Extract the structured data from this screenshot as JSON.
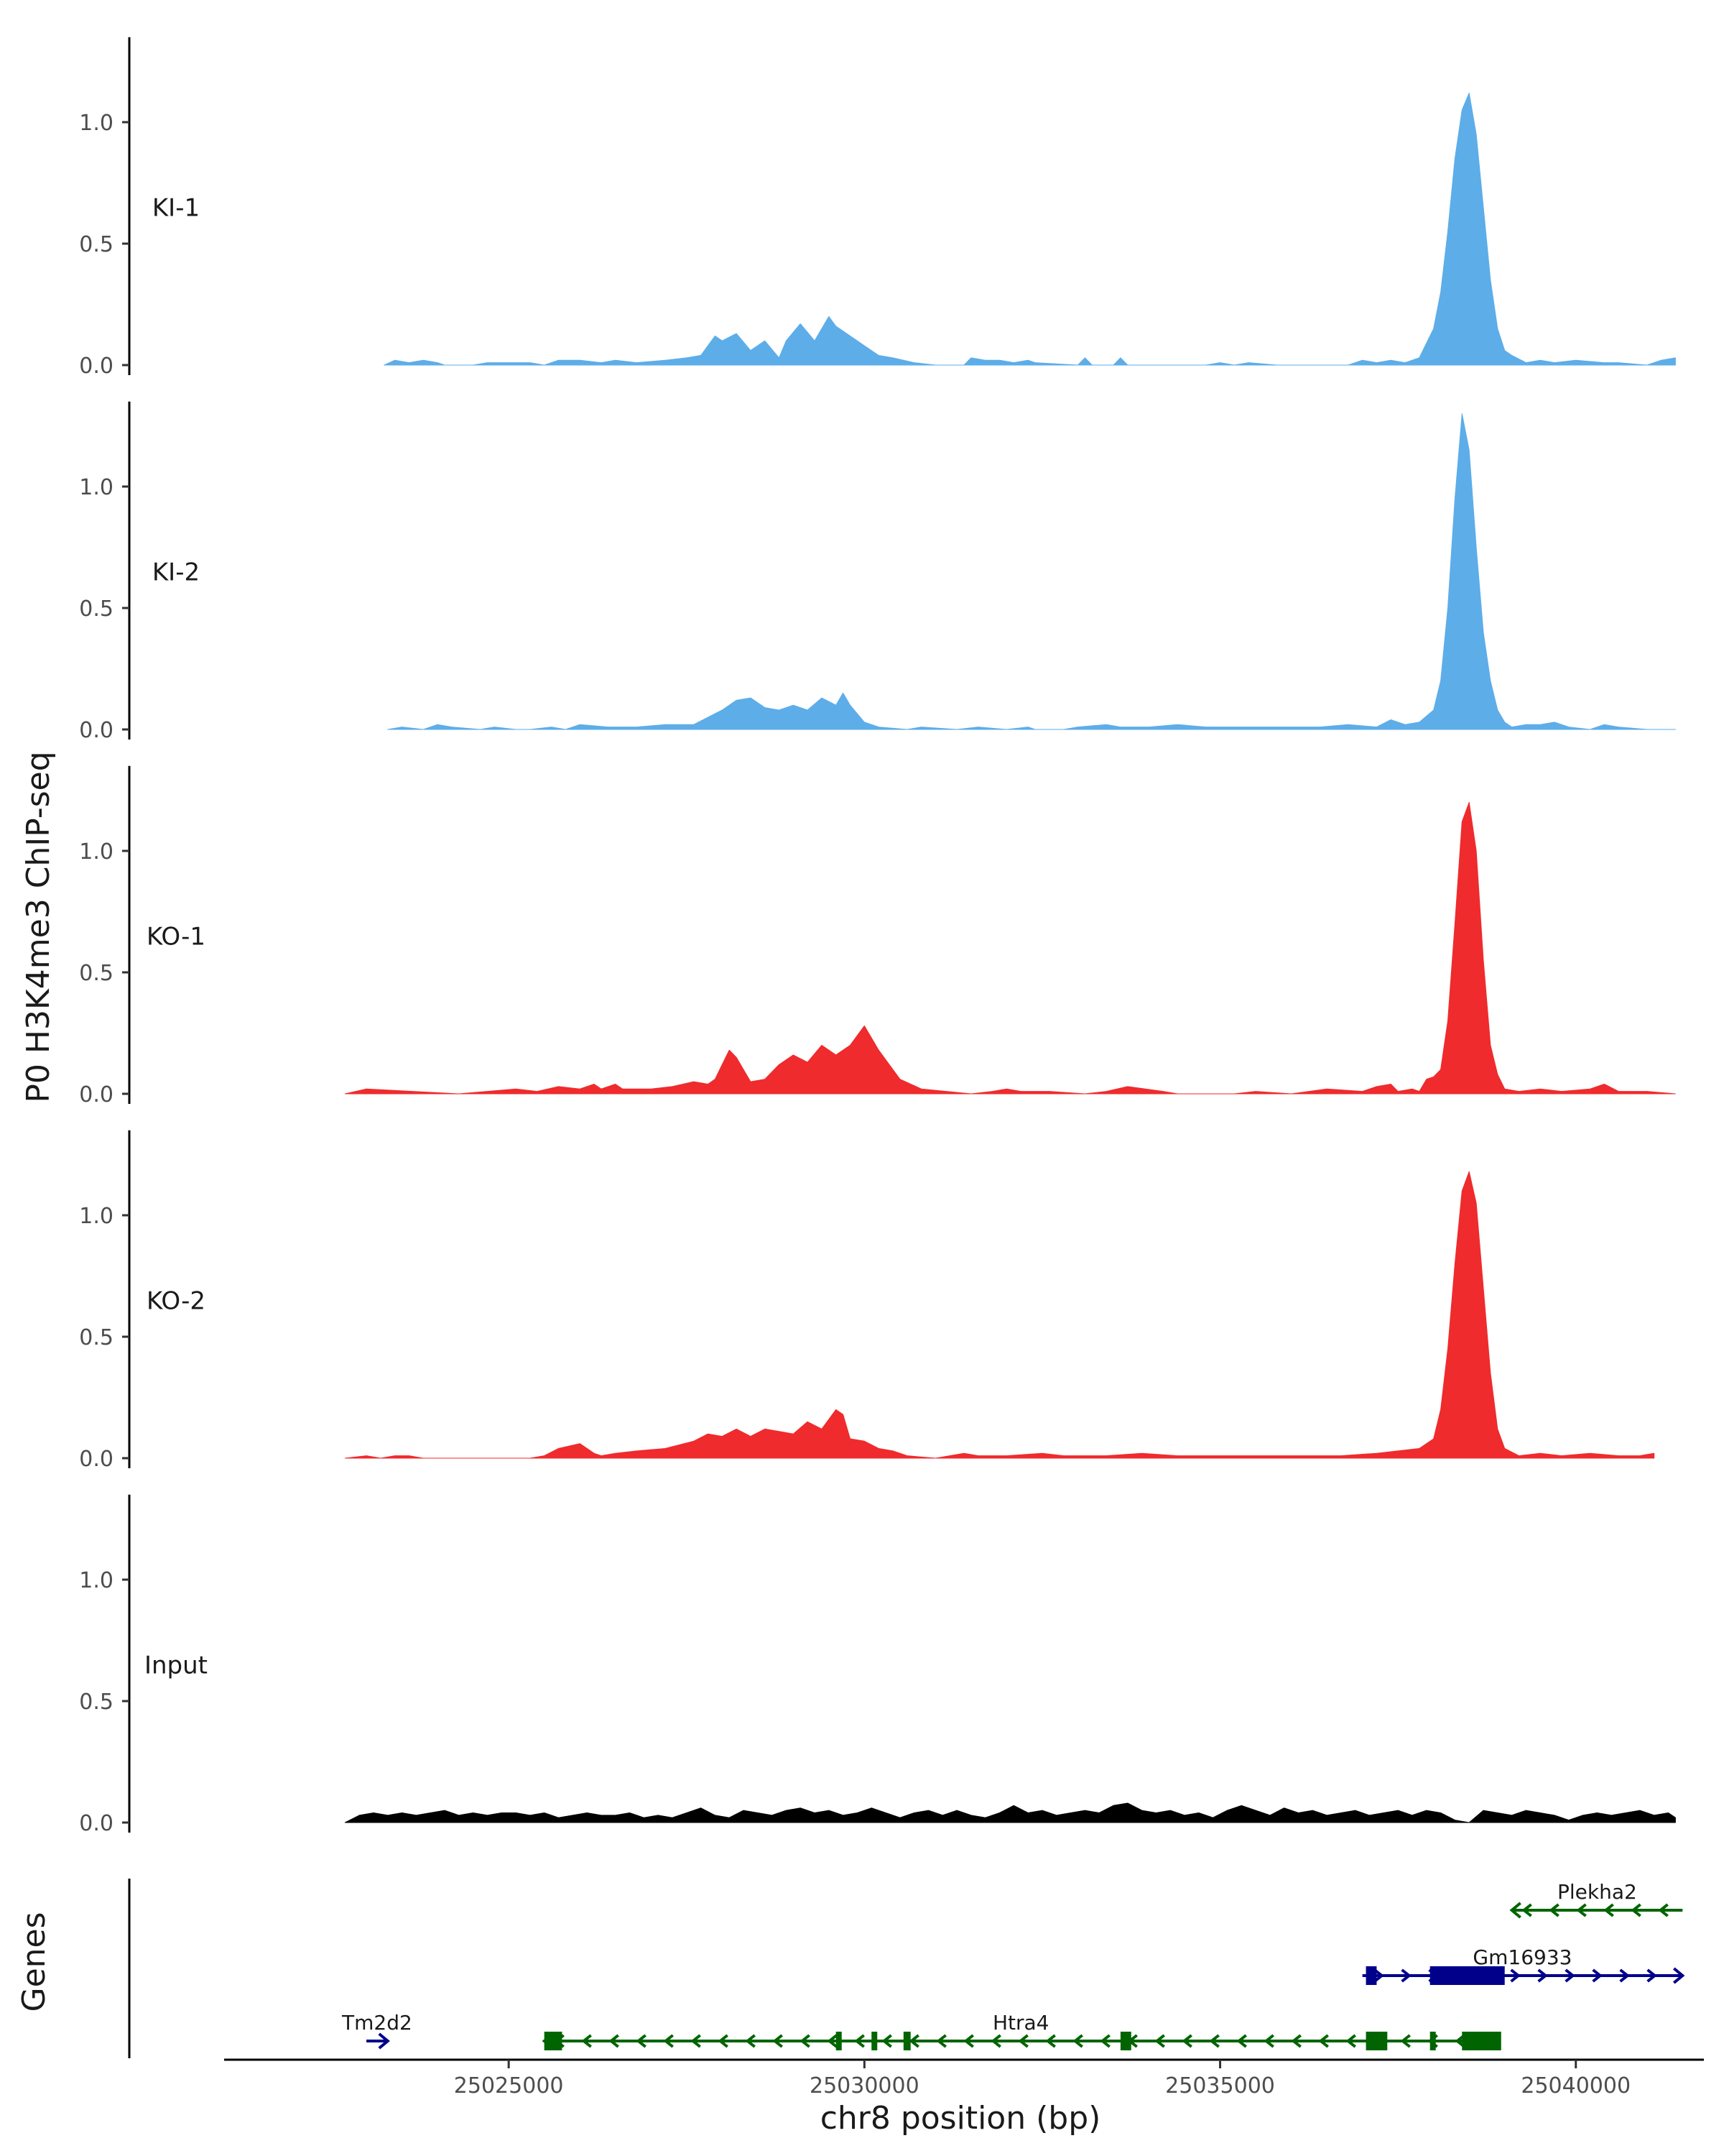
{
  "chart_data": {
    "type": "area",
    "title": "",
    "ylabel": "P0 H3K4me3 ChIP-seq",
    "xlabel": "chr8 position (bp)",
    "xlim": [
      25021000,
      25041800
    ],
    "ylim": [
      0,
      1.35
    ],
    "y_ticks": [
      0.0,
      0.5,
      1.0
    ],
    "y_tick_labels": [
      "0.0",
      "0.5",
      "1.0"
    ],
    "x_ticks": [
      25025000,
      25030000,
      25035000,
      25040000
    ],
    "x_tick_labels": [
      "25025000",
      "25030000",
      "25035000",
      "25040000"
    ],
    "genes_axis_label": "Genes",
    "colors": {
      "KI": "#5dade9",
      "KO": "#ef2b2d",
      "Input": "#000000",
      "gene_minus": "#006400",
      "gene_plus": "#00008b"
    },
    "tracks": [
      {
        "name": "KI-1",
        "color": "#5dade9",
        "x": [
          25023250,
          25023400,
          25023600,
          25023800,
          25024000,
          25024100,
          25024500,
          25024700,
          25025300,
          25025500,
          25025700,
          25026000,
          25026300,
          25026500,
          25026800,
          25027200,
          25027500,
          25027700,
          25027900,
          25028000,
          25028200,
          25028400,
          25028600,
          25028800,
          25028900,
          25029100,
          25029300,
          25029500,
          25029600,
          25029800,
          25030000,
          25030200,
          25030400,
          25030700,
          25031000,
          25031400,
          25031500,
          25031700,
          25031900,
          25032100,
          25032300,
          25032400,
          25033000,
          25033100,
          25033200,
          25033500,
          25033600,
          25033700,
          25034800,
          25035000,
          25035200,
          25035400,
          25035800,
          25036000,
          25036800,
          25037000,
          25037200,
          25037400,
          25037600,
          25037800,
          25038000,
          25038100,
          25038200,
          25038300,
          25038400,
          25038500,
          25038600,
          25038700,
          25038800,
          25038900,
          25039000,
          25039100,
          25039300,
          25039500,
          25039700,
          25040000,
          25040400,
          25040600,
          25041000,
          25041200,
          25041400
        ],
        "values": [
          0.0,
          0.02,
          0.01,
          0.02,
          0.01,
          0.0,
          0.0,
          0.01,
          0.01,
          0.0,
          0.02,
          0.02,
          0.01,
          0.02,
          0.01,
          0.02,
          0.03,
          0.04,
          0.12,
          0.1,
          0.13,
          0.06,
          0.1,
          0.03,
          0.1,
          0.17,
          0.1,
          0.2,
          0.16,
          0.12,
          0.08,
          0.04,
          0.03,
          0.01,
          0.0,
          0.0,
          0.03,
          0.02,
          0.02,
          0.01,
          0.02,
          0.01,
          0.0,
          0.03,
          0.0,
          0.0,
          0.03,
          0.0,
          0.0,
          0.01,
          0.0,
          0.01,
          0.0,
          0.0,
          0.0,
          0.02,
          0.01,
          0.02,
          0.01,
          0.03,
          0.15,
          0.3,
          0.55,
          0.85,
          1.05,
          1.12,
          0.95,
          0.65,
          0.35,
          0.15,
          0.06,
          0.04,
          0.01,
          0.02,
          0.01,
          0.02,
          0.01,
          0.01,
          0.0,
          0.02,
          0.03
        ]
      },
      {
        "name": "KI-2",
        "color": "#5dade9",
        "x": [
          25023300,
          25023500,
          25023800,
          25024000,
          25024200,
          25024600,
          25024800,
          25025100,
          25025300,
          25025600,
          25025800,
          25026000,
          25026400,
          25026800,
          25027200,
          25027600,
          25027800,
          25028000,
          25028200,
          25028400,
          25028600,
          25028800,
          25029000,
          25029200,
          25029400,
          25029600,
          25029700,
          25029800,
          25030000,
          25030200,
          25030600,
          25030800,
          25031300,
          25031600,
          25032000,
          25032300,
          25032400,
          25032800,
          25033000,
          25033400,
          25033600,
          25034000,
          25034400,
          25034800,
          25035200,
          25035600,
          25036000,
          25036400,
          25036800,
          25037200,
          25037400,
          25037600,
          25037800,
          25038000,
          25038100,
          25038200,
          25038300,
          25038400,
          25038500,
          25038600,
          25038700,
          25038800,
          25038900,
          25039000,
          25039100,
          25039300,
          25039500,
          25039700,
          25039900,
          25040200,
          25040400,
          25040600,
          25041000,
          25041400
        ],
        "values": [
          0.0,
          0.01,
          0.0,
          0.02,
          0.01,
          0.0,
          0.01,
          0.0,
          0.0,
          0.01,
          0.0,
          0.02,
          0.01,
          0.01,
          0.02,
          0.02,
          0.05,
          0.08,
          0.12,
          0.13,
          0.09,
          0.08,
          0.1,
          0.08,
          0.13,
          0.1,
          0.15,
          0.1,
          0.03,
          0.01,
          0.0,
          0.01,
          0.0,
          0.01,
          0.0,
          0.01,
          0.0,
          0.0,
          0.01,
          0.02,
          0.01,
          0.01,
          0.02,
          0.01,
          0.01,
          0.01,
          0.01,
          0.01,
          0.02,
          0.01,
          0.04,
          0.02,
          0.03,
          0.08,
          0.2,
          0.5,
          0.95,
          1.3,
          1.15,
          0.75,
          0.4,
          0.2,
          0.08,
          0.03,
          0.01,
          0.02,
          0.02,
          0.03,
          0.01,
          0.0,
          0.02,
          0.01,
          0.0,
          0.0
        ]
      },
      {
        "name": "KO-1",
        "color": "#ef2b2d",
        "x": [
          25022700,
          25023000,
          25024300,
          25024700,
          25025100,
          25025400,
          25025700,
          25026000,
          25026200,
          25026300,
          25026500,
          25026600,
          25026800,
          25027000,
          25027300,
          25027600,
          25027800,
          25027900,
          25028000,
          25028100,
          25028200,
          25028300,
          25028400,
          25028600,
          25028800,
          25029000,
          25029200,
          25029400,
          25029600,
          25029800,
          25030000,
          25030200,
          25030500,
          25030800,
          25031500,
          25031800,
          25032000,
          25032200,
          25032600,
          25033100,
          25033400,
          25033700,
          25034200,
          25034400,
          25035200,
          25035500,
          25036000,
          25036500,
          25037000,
          25037200,
          25037400,
          25037500,
          25037700,
          25037800,
          25037900,
          25038000,
          25038100,
          25038200,
          25038300,
          25038400,
          25038500,
          25038600,
          25038700,
          25038800,
          25038900,
          25039000,
          25039200,
          25039500,
          25039800,
          25040200,
          25040400,
          25040600,
          25041000,
          25041400
        ],
        "values": [
          0.0,
          0.02,
          0.0,
          0.01,
          0.02,
          0.01,
          0.03,
          0.02,
          0.04,
          0.02,
          0.04,
          0.02,
          0.02,
          0.02,
          0.03,
          0.05,
          0.04,
          0.06,
          0.12,
          0.18,
          0.15,
          0.1,
          0.05,
          0.06,
          0.12,
          0.16,
          0.13,
          0.2,
          0.16,
          0.2,
          0.28,
          0.18,
          0.06,
          0.02,
          0.0,
          0.01,
          0.02,
          0.01,
          0.01,
          0.0,
          0.01,
          0.03,
          0.01,
          0.0,
          0.0,
          0.01,
          0.0,
          0.02,
          0.01,
          0.03,
          0.04,
          0.01,
          0.02,
          0.01,
          0.06,
          0.07,
          0.1,
          0.3,
          0.7,
          1.12,
          1.2,
          1.0,
          0.55,
          0.2,
          0.08,
          0.02,
          0.01,
          0.02,
          0.01,
          0.02,
          0.04,
          0.01,
          0.01,
          0.0
        ]
      },
      {
        "name": "KO-2",
        "color": "#ef2b2d",
        "x": [
          25022700,
          25023000,
          25023200,
          25023400,
          25023600,
          25023800,
          25025300,
          25025500,
          25025700,
          25026000,
          25026200,
          25026300,
          25026500,
          25026800,
          25027200,
          25027600,
          25027800,
          25028000,
          25028200,
          25028400,
          25028600,
          25028800,
          25029000,
          25029200,
          25029400,
          25029600,
          25029700,
          25029800,
          25030000,
          25030200,
          25030400,
          25030600,
          25031000,
          25031400,
          25031600,
          25032000,
          25032500,
          25032800,
          25033400,
          25033900,
          25034400,
          25034800,
          25035200,
          25035700,
          25036200,
          25036700,
          25037200,
          25037500,
          25037800,
          25038000,
          25038100,
          25038200,
          25038300,
          25038400,
          25038500,
          25038600,
          25038700,
          25038800,
          25038900,
          25039000,
          25039200,
          25039500,
          25039800,
          25040200,
          25040600,
          25040900,
          25041100
        ],
        "values": [
          0.0,
          0.01,
          0.0,
          0.01,
          0.01,
          0.0,
          0.0,
          0.01,
          0.04,
          0.06,
          0.02,
          0.01,
          0.02,
          0.03,
          0.04,
          0.07,
          0.1,
          0.09,
          0.12,
          0.09,
          0.12,
          0.11,
          0.1,
          0.15,
          0.12,
          0.2,
          0.18,
          0.08,
          0.07,
          0.04,
          0.03,
          0.01,
          0.0,
          0.02,
          0.01,
          0.01,
          0.02,
          0.01,
          0.01,
          0.02,
          0.01,
          0.01,
          0.01,
          0.01,
          0.01,
          0.01,
          0.02,
          0.03,
          0.04,
          0.08,
          0.2,
          0.45,
          0.8,
          1.1,
          1.18,
          1.05,
          0.7,
          0.35,
          0.12,
          0.04,
          0.01,
          0.02,
          0.01,
          0.02,
          0.01,
          0.01,
          0.02
        ]
      },
      {
        "name": "Input",
        "color": "#000000",
        "x": [
          25022700,
          25022900,
          25023100,
          25023300,
          25023500,
          25023700,
          25023900,
          25024100,
          25024300,
          25024500,
          25024700,
          25024900,
          25025100,
          25025300,
          25025500,
          25025700,
          25025900,
          25026100,
          25026300,
          25026500,
          25026700,
          25026900,
          25027100,
          25027300,
          25027500,
          25027700,
          25027900,
          25028100,
          25028300,
          25028500,
          25028700,
          25028900,
          25029100,
          25029300,
          25029500,
          25029700,
          25029900,
          25030100,
          25030300,
          25030500,
          25030700,
          25030900,
          25031100,
          25031300,
          25031500,
          25031700,
          25031900,
          25032100,
          25032300,
          25032500,
          25032700,
          25032900,
          25033100,
          25033300,
          25033500,
          25033700,
          25033900,
          25034100,
          25034300,
          25034500,
          25034700,
          25034900,
          25035100,
          25035300,
          25035500,
          25035700,
          25035900,
          25036100,
          25036300,
          25036500,
          25036700,
          25036900,
          25037100,
          25037300,
          25037500,
          25037700,
          25037900,
          25038100,
          25038300,
          25038500,
          25038700,
          25038900,
          25039100,
          25039300,
          25039500,
          25039700,
          25039900,
          25040100,
          25040300,
          25040500,
          25040700,
          25040900,
          25041100,
          25041300,
          25041400
        ],
        "values": [
          0.0,
          0.03,
          0.04,
          0.03,
          0.04,
          0.03,
          0.04,
          0.05,
          0.03,
          0.04,
          0.03,
          0.04,
          0.04,
          0.03,
          0.04,
          0.02,
          0.03,
          0.04,
          0.03,
          0.03,
          0.04,
          0.02,
          0.03,
          0.02,
          0.04,
          0.06,
          0.03,
          0.02,
          0.05,
          0.04,
          0.03,
          0.05,
          0.06,
          0.04,
          0.05,
          0.03,
          0.04,
          0.06,
          0.04,
          0.02,
          0.04,
          0.05,
          0.03,
          0.05,
          0.03,
          0.02,
          0.04,
          0.07,
          0.04,
          0.05,
          0.03,
          0.04,
          0.05,
          0.04,
          0.07,
          0.08,
          0.05,
          0.04,
          0.05,
          0.03,
          0.04,
          0.02,
          0.05,
          0.07,
          0.05,
          0.03,
          0.06,
          0.04,
          0.05,
          0.03,
          0.04,
          0.05,
          0.03,
          0.04,
          0.05,
          0.03,
          0.05,
          0.04,
          0.01,
          0.0,
          0.05,
          0.04,
          0.03,
          0.05,
          0.04,
          0.03,
          0.01,
          0.03,
          0.04,
          0.03,
          0.04,
          0.05,
          0.03,
          0.04,
          0.02
        ]
      }
    ],
    "genes": [
      {
        "name": "Plekha2",
        "strand": "-",
        "color": "#006400",
        "row": 2,
        "start": 25039100,
        "end": 25041500,
        "exons": []
      },
      {
        "name": "Gm16933",
        "strand": "+",
        "color": "#00008b",
        "row": 1,
        "start": 25037000,
        "end": 25041500,
        "exons": [
          [
            25037050,
            25037200
          ],
          [
            25037950,
            25039000
          ]
        ]
      },
      {
        "name": "Tm2d2",
        "strand": "+",
        "color": "#00008b",
        "row": 0,
        "start": 25023000,
        "end": 25023300,
        "exons": []
      },
      {
        "name": "Htra4",
        "strand": "-",
        "color": "#006400",
        "row": 0,
        "start": 25025500,
        "end": 25038900,
        "exons": [
          [
            25025500,
            25025750
          ],
          [
            25029600,
            25029680
          ],
          [
            25030100,
            25030150
          ],
          [
            25030550,
            25030650
          ],
          [
            25033600,
            25033750
          ],
          [
            25037050,
            25037350
          ],
          [
            25037950,
            25038020
          ],
          [
            25038400,
            25038950
          ]
        ]
      }
    ]
  }
}
